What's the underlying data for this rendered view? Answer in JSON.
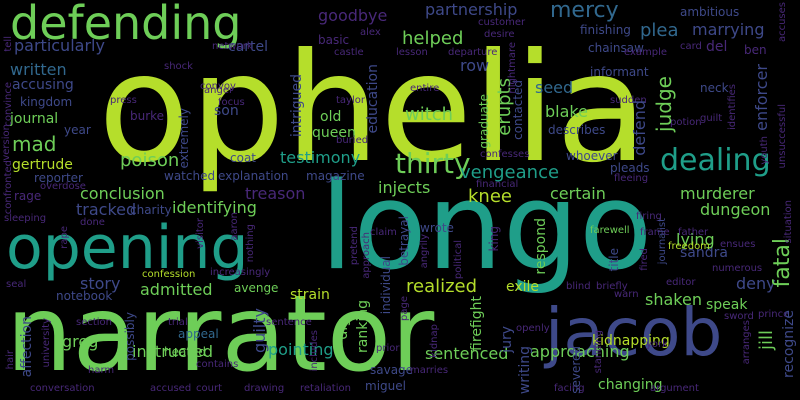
{
  "words": {
    "ophelia": "ophelia",
    "longo": "longo",
    "narrator": "narrator",
    "opening": "opening",
    "defending": "defending",
    "jacob": "jacob",
    "dealing": "dealing",
    "thirty": "thirty",
    "vengeance": "vengeance",
    "partnership": "partnership",
    "mercy": "mercy",
    "goodbye": "goodbye",
    "cartel": "cartel",
    "particularly": "particularly",
    "written": "written",
    "accusing": "accusing",
    "journal": "journal",
    "mad": "mad",
    "gertrude": "gertrude",
    "poison": "poison",
    "helped": "helped",
    "row": "row",
    "seed": "seed",
    "plea": "plea",
    "marrying": "marrying",
    "enforcer": "enforcer",
    "del": "del",
    "ben": "ben",
    "blake": "blake",
    "judge": "judge",
    "erupts": "erupts",
    "witch": "witch",
    "old": "old",
    "queen": "queen",
    "testimony": "testimony",
    "conclusion": "conclusion",
    "tracked": "tracked",
    "treason": "treason",
    "injects": "injects",
    "knee": "knee",
    "certain": "certain",
    "murderer": "murderer",
    "dungeon": "dungeon",
    "sandra": "sandra",
    "lying": "lying",
    "fatal": "fatal",
    "identifying": "identifying",
    "charity": "charity",
    "story": "story",
    "admitted": "admitted",
    "realized": "realized",
    "exile": "exile",
    "shaken": "shaken",
    "deny": "deny",
    "greg": "greg",
    "instructed": "instructed",
    "pointing": "pointing",
    "sentenced": "sentenced",
    "approaching": "approaching",
    "changing": "changing",
    "kidnapping": "kidnapping",
    "jill": "jill",
    "recognize": "recognize",
    "guilty": "guilty",
    "strain": "strain",
    "avenge": "avenge",
    "dig": "dig",
    "ranking": "ranking",
    "betrayal": "betrayal",
    "firefight": "firefight",
    "jury": "jury",
    "writing": "writing",
    "severed": "severed",
    "speak": "speak",
    "heated": "heated",
    "savage": "savage",
    "miguel": "miguel",
    "appeal": "appeal",
    "possibly": "possibly",
    "affection": "affection",
    "notebook": "notebook",
    "reporter": "reporter",
    "watched": "watched",
    "explanation": "explanation",
    "magazine": "magazine",
    "coat": "coat",
    "son": "son",
    "burke": "burke",
    "year": "year",
    "kingdom": "kingdom",
    "intrigued": "intrigued",
    "education": "education",
    "contacted": "contacted",
    "graduate": "graduate",
    "describes": "describes",
    "whoever": "whoever",
    "pleads": "pleads",
    "finishing": "finishing",
    "chainsaw": "chainsaw",
    "ambitious": "ambitious",
    "informant": "informant",
    "defend": "defend",
    "neck": "neck",
    "extremely": "extremely",
    "respond": "respond",
    "wrote": "wrote",
    "title": "title",
    "king": "king",
    "basic": "basic",
    "customer": "customer",
    "tell": "tell",
    "network": "network",
    "convoy": "convoy",
    "shock": "shock",
    "anger": "anger",
    "focus": "focus",
    "press": "press",
    "taylor": "taylor",
    "alex": "alex",
    "castle": "castle",
    "desire": "desire",
    "lesson": "lesson",
    "departure": "departure",
    "example": "example",
    "card": "card",
    "accuses": "accuses",
    "nightmare": "nightmare",
    "entire": "entire",
    "sudden": "sudden",
    "identifies": "identifies",
    "potion": "potion",
    "guilt": "guilt",
    "unsuccessful": "unsuccessful",
    "youth": "youth",
    "convince": "convince",
    "version": "version",
    "confronted": "confronted",
    "buried": "buried",
    "rage": "rage",
    "sleeping": "sleeping",
    "rape": "rape",
    "done": "done",
    "overdose": "overdose",
    "confesses": "confesses",
    "fleeing": "fleeing",
    "firing": "firing",
    "frame": "frame",
    "financial": "financial",
    "farewell": "farewell",
    "father": "father",
    "situation": "situation",
    "claim": "claim",
    "pretend": "pretend",
    "approach": "approach",
    "angrily": "angrily",
    "political": "political",
    "journalist": "journalist",
    "fired": "fired",
    "freedom": "freedom",
    "ensues": "ensues",
    "numerous": "numerous",
    "confession": "confession",
    "increasingly": "increasingly",
    "visitor": "visitor",
    "aaron": "aaron",
    "nothing": "nothing",
    "seal": "seal",
    "university": "university",
    "section": "section",
    "trial": "trial",
    "sentence": "sentence",
    "individual": "individual",
    "page": "page",
    "kidnap": "kidnap",
    "blind": "blind",
    "editor": "editor",
    "briefly": "briefly",
    "warn": "warn",
    "sword": "sword",
    "prince": "prince",
    "arranges": "arranges",
    "york": "york",
    "openly": "openly",
    "standing": "standing",
    "harm": "harm",
    "hair": "hair",
    "contains": "contains",
    "includes": "includes",
    "prior": "prior",
    "marries": "marries",
    "facing": "facing",
    "argument": "argument",
    "conversation": "conversation",
    "accused": "accused",
    "court": "court",
    "drawing": "drawing",
    "retaliation": "retaliation"
  },
  "colors": {
    "lime": "#b5de2b",
    "green": "#6ece58",
    "teal": "#1f9e89",
    "blue": "#31688e",
    "deep_blue": "#3e4989",
    "purple": "#482878",
    "dark_purple": "#440154"
  }
}
